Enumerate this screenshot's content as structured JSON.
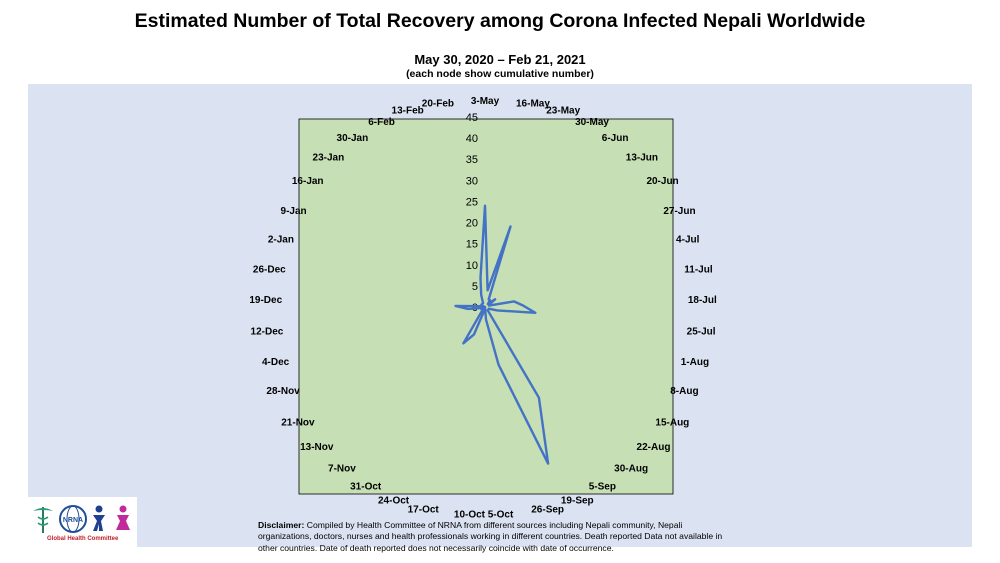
{
  "header": {
    "title": "Estimated Number of Total Recovery among Corona Infected Nepali Worldwide",
    "subtitle": "May 30, 2020 – Feb 21, 2021",
    "note": "(each node show cumulative number)"
  },
  "footer": {
    "disclaimer_label": "Disclaimer:",
    "disclaimer_text": " Compiled by Health Committee  of NRNA from different sources including Nepali community, Nepali organizations, doctors, nurses and health professionals working in different countries. Death reported Data not available in other countries. Date of death reported does not necessarily coincide with date of occurrence.",
    "logo_caption": "Global Health Committee"
  },
  "colors": {
    "plot_fill": "#c6dfb5",
    "series_line": "#4472c4",
    "panel_background": "#dbe3f3",
    "logo_accent": "#c0202a"
  },
  "chart_data": {
    "type": "radar",
    "radial_ticks": [
      "0",
      "5",
      "10",
      "15",
      "20",
      "25",
      "30",
      "35",
      "40",
      "45"
    ],
    "rmin": 0,
    "rmax": 45,
    "categories": [
      "3-May",
      "16-May",
      "23-May",
      "30-May",
      "6-Jun",
      "13-Jun",
      "20-Jun",
      "27-Jun",
      "4-Jul",
      "11-Jul",
      "18-Jul",
      "25-Jul",
      "1-Aug",
      "8-Aug",
      "15-Aug",
      "22-Aug",
      "30-Aug",
      "5-Sep",
      "19-Sep",
      "26-Sep",
      "5-Oct",
      "10-Oct",
      "17-Oct",
      "24-Oct",
      "31-Oct",
      "7-Nov",
      "13-Nov",
      "21-Nov",
      "28-Nov",
      "4-Dec",
      "12-Dec",
      "19-Dec",
      "26-Dec",
      "2-Jan",
      "9-Jan",
      "16-Jan",
      "23-Jan",
      "30-Jan",
      "6-Feb",
      "13-Feb",
      "20-Feb"
    ],
    "series": [
      {
        "values": [
          24,
          4,
          20,
          2,
          2,
          1,
          3,
          1,
          1,
          7,
          9,
          12,
          3,
          1,
          1,
          1,
          1,
          25,
          40,
          14,
          3,
          0,
          1,
          7,
          10,
          1,
          1,
          1,
          0,
          1,
          4,
          7,
          1,
          0,
          1,
          1,
          1,
          1,
          1,
          3,
          7
        ]
      }
    ],
    "legend": "none",
    "grid": false
  }
}
